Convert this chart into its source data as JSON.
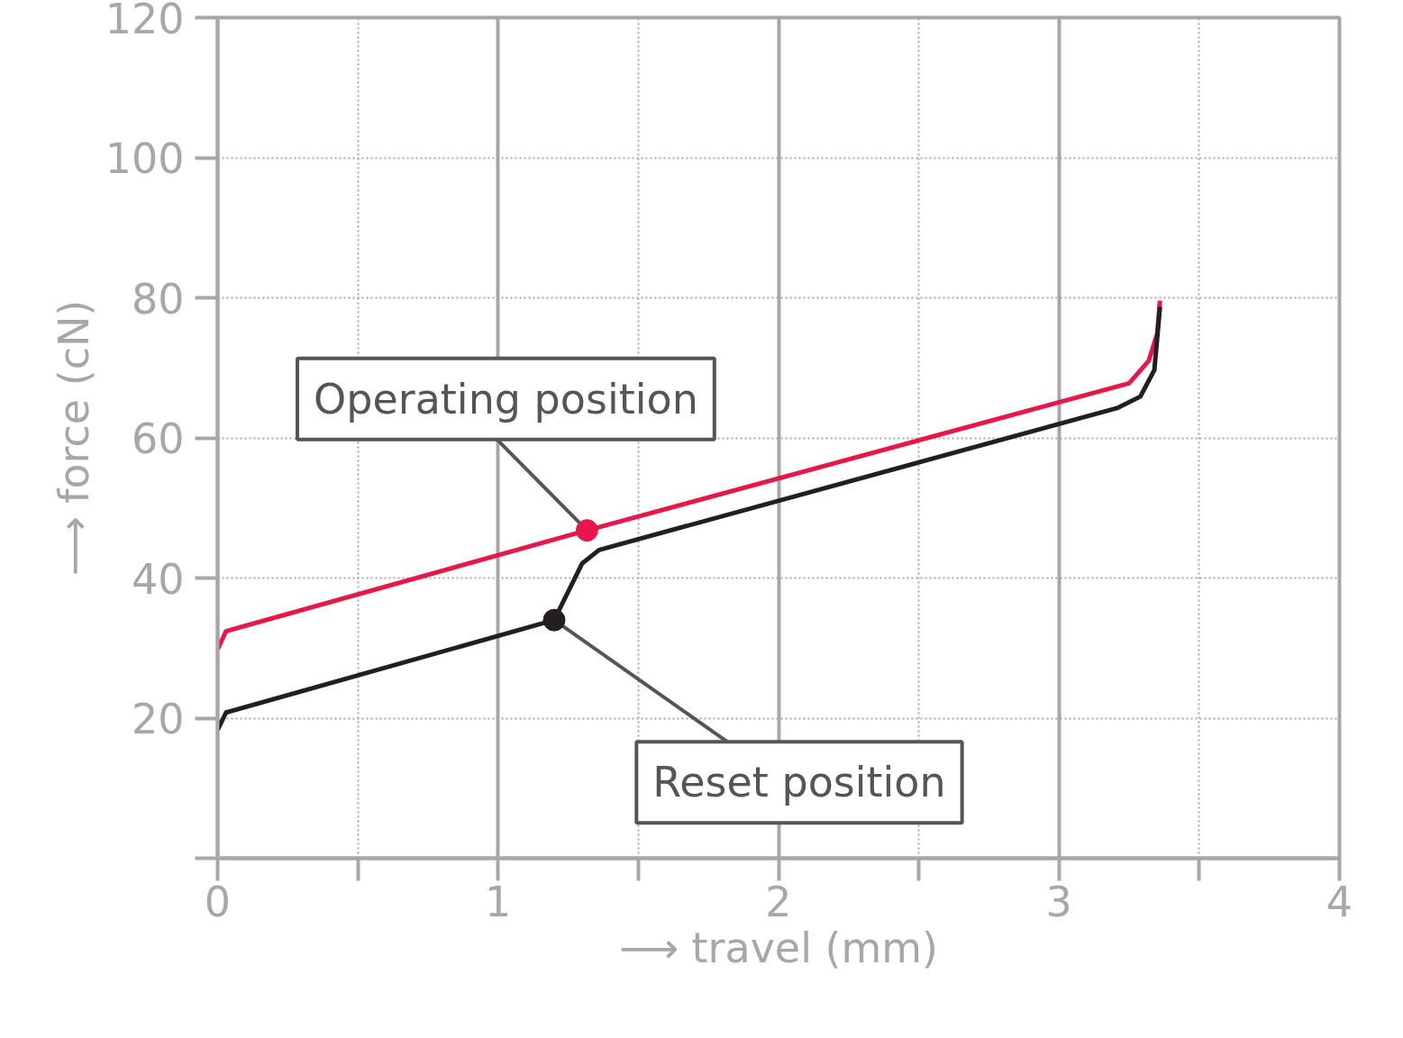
{
  "chart_data": {
    "type": "line",
    "xlabel": "⟶ travel (mm)",
    "ylabel": "⟶ force (cN)",
    "xlim": [
      0,
      4
    ],
    "ylim": [
      0,
      120
    ],
    "xticks": [
      0,
      {
        "value": 0.5,
        "label": null
      },
      1,
      {
        "value": 1.5,
        "label": null
      },
      2,
      {
        "value": 2.5,
        "label": null
      },
      3,
      {
        "value": 3.5,
        "label": null
      },
      4
    ],
    "yticks": [
      {
        "value": 0,
        "label": null
      },
      20,
      40,
      60,
      80,
      100,
      120
    ],
    "grid": true,
    "marker": "none",
    "line_style": "solid",
    "series": [
      {
        "color": "#e8174a",
        "x": [
          0,
          0.03,
          1.317,
          3.25,
          3.32,
          3.35,
          3.36
        ],
        "values": [
          29.8,
          32.4,
          46.8,
          67.8,
          71.0,
          74.9,
          79.6
        ]
      },
      {
        "color": "#231f20",
        "x": [
          0,
          0.03,
          1.2,
          1.3,
          1.36,
          3.21,
          3.29,
          3.34,
          3.36
        ],
        "values": [
          18.3,
          20.8,
          34.0,
          42.1,
          44.0,
          64.3,
          65.9,
          69.7,
          78.7
        ]
      }
    ],
    "annotations": [
      {
        "text": "Operating position",
        "x": 1.317,
        "y": 46.8
      },
      {
        "text": "Reset position",
        "x": 1.2,
        "y": 34.0
      }
    ]
  }
}
